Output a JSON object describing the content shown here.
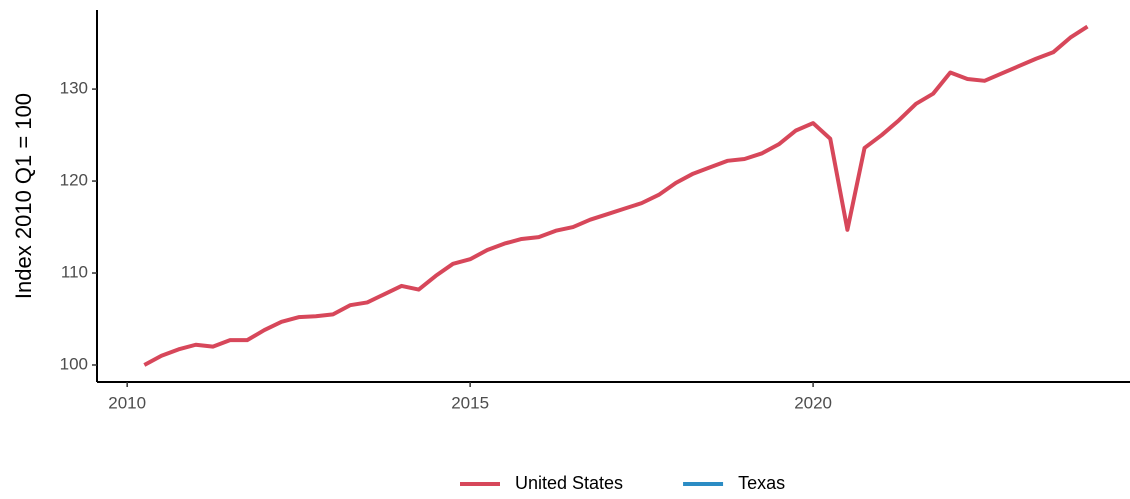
{
  "chart_data": {
    "type": "line",
    "y_label": "Index 2010 Q1 = 100",
    "x": [
      2010.25,
      2010.5,
      2010.75,
      2011.0,
      2011.25,
      2011.5,
      2011.75,
      2012.0,
      2012.25,
      2012.5,
      2012.75,
      2013.0,
      2013.25,
      2013.5,
      2013.75,
      2014.0,
      2014.25,
      2014.5,
      2014.75,
      2015.0,
      2015.25,
      2015.5,
      2015.75,
      2016.0,
      2016.25,
      2016.5,
      2016.75,
      2017.0,
      2017.25,
      2017.5,
      2017.75,
      2018.0,
      2018.25,
      2018.5,
      2018.75,
      2019.0,
      2019.25,
      2019.5,
      2019.75,
      2020.0,
      2020.25,
      2020.5,
      2020.75,
      2021.0,
      2021.25,
      2021.5,
      2021.75,
      2022.0,
      2022.25,
      2022.5,
      2022.75,
      2023.0,
      2023.25,
      2023.5,
      2023.75,
      2024.0
    ],
    "series": [
      {
        "name": "United States",
        "color": "#d7475a",
        "values": [
          100,
          101.0,
          101.7,
          102.2,
          102.0,
          102.7,
          102.7,
          103.8,
          104.7,
          105.2,
          105.3,
          105.5,
          106.5,
          106.8,
          107.7,
          108.6,
          108.2,
          109.7,
          111.0,
          111.5,
          112.5,
          113.2,
          113.7,
          113.9,
          114.6,
          115.0,
          115.8,
          116.4,
          117.0,
          117.6,
          118.5,
          119.8,
          120.8,
          121.5,
          122.2,
          122.4,
          123.0,
          124.0,
          125.5,
          126.3,
          124.6,
          114.7,
          123.6,
          125.0,
          126.6,
          128.4,
          129.5,
          131.8,
          131.1,
          130.9,
          131.7,
          132.5,
          133.3,
          134.0,
          135.6,
          136.8
        ]
      },
      {
        "name": "Texas",
        "color": "#2b8cc4",
        "values": [
          null,
          null,
          null,
          null,
          null,
          null,
          null,
          null,
          null,
          null,
          null,
          null,
          null,
          null,
          null,
          null,
          null,
          null,
          null,
          null,
          null,
          null,
          null,
          null,
          null,
          null,
          null,
          null,
          null,
          null,
          null,
          null,
          null,
          null,
          null,
          null,
          null,
          null,
          null,
          null,
          null,
          null,
          null,
          null,
          null,
          null,
          null,
          null,
          null,
          null,
          null,
          null,
          null,
          null,
          null,
          null
        ]
      }
    ],
    "xlim": [
      2009.56,
      2024.62
    ],
    "xticks": [
      2010,
      2015,
      2020
    ],
    "ylim": [
      98.15,
      138.6
    ],
    "yticks": [
      100,
      110,
      120,
      130
    ],
    "grid": false,
    "legend": "bottom"
  }
}
